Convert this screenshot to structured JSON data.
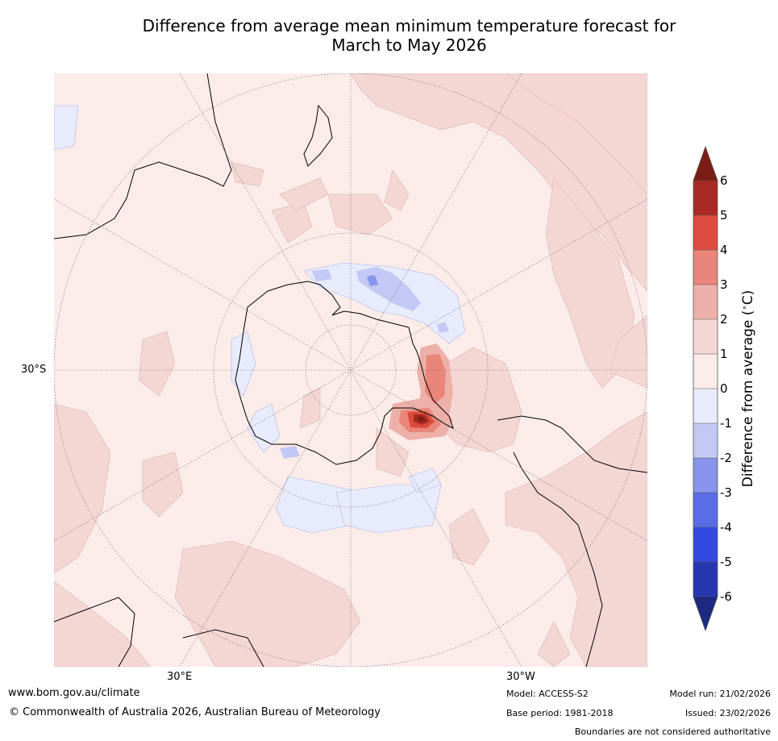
{
  "title_line1": "Difference from average mean minimum temperature forecast for",
  "title_line2": "March to May 2026",
  "map": {
    "projection": "south polar stereographic",
    "lat_label": "30°S",
    "lon_labels": [
      "30°E",
      "30°W"
    ]
  },
  "colorbar": {
    "label": "Difference from average ( °C)",
    "label_prefix": "Difference from average (",
    "label_degree": "∘",
    "label_suffix": "C)",
    "ticks": [
      "6",
      "5",
      "4",
      "3",
      "2",
      "1",
      "0",
      "-1",
      "-2",
      "-3",
      "-4",
      "-5",
      "-6"
    ],
    "colors": {
      "above_6": "#7b1c15",
      "5_to_6": "#a82a22",
      "4_to_5": "#dd4b3d",
      "3_to_4": "#e98579",
      "2_to_3": "#edb0a8",
      "1_to_2": "#f4d6d3",
      "0_to_1": "#fbece9",
      "m1_to_0": "#e8ebfb",
      "m2_to_m1": "#c3c8f4",
      "m3_to_m2": "#8893ec",
      "m4_to_m3": "#5a6ce6",
      "m5_to_m4": "#3049e0",
      "m6_to_m5": "#2637b0",
      "below_m6": "#1c2a82"
    }
  },
  "footer": {
    "website": "www.bom.gov.au/climate",
    "copyright": "© Commonwealth of Australia 2026, Australian Bureau of Meteorology",
    "model": "Model: ACCESS-S2",
    "base_period": "Base period: 1981-2018",
    "model_run": "Model run: 21/02/2026",
    "issued": "Issued: 23/02/2026",
    "disclaimer": "Boundaries are not considered authoritative"
  }
}
